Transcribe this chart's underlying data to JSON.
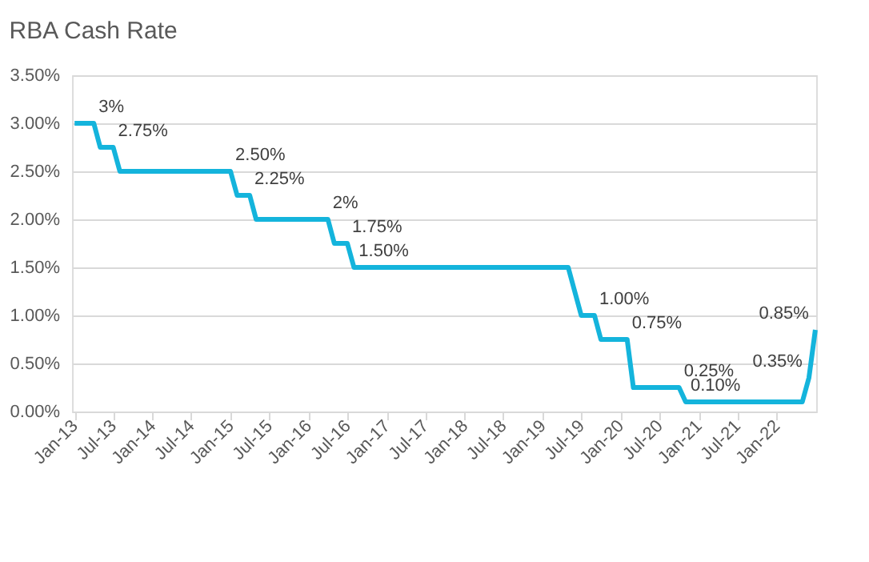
{
  "chart_data": {
    "type": "line",
    "title": "RBA Cash Rate",
    "x": [
      "2013-01",
      "2013-04",
      "2013-05",
      "2013-07",
      "2013-08",
      "2015-01",
      "2015-02",
      "2015-04",
      "2015-05",
      "2016-04",
      "2016-05",
      "2016-07",
      "2016-08",
      "2019-05",
      "2019-07",
      "2019-09",
      "2019-10",
      "2020-02",
      "2020-03",
      "2020-10",
      "2020-11",
      "2022-05",
      "2022-06",
      "2022-07"
    ],
    "series": [
      {
        "color": "#14b4dc",
        "values": [
          3.0,
          3.0,
          2.75,
          2.75,
          2.5,
          2.5,
          2.25,
          2.25,
          2.0,
          2.0,
          1.75,
          1.75,
          1.5,
          1.5,
          1.0,
          1.0,
          0.75,
          0.75,
          0.25,
          0.25,
          0.1,
          0.1,
          0.35,
          0.85
        ]
      }
    ],
    "xlim": [
      "2012-12-20",
      "2022-07-05"
    ],
    "xticks": [
      {
        "value": "2013-01",
        "label": "Jan-13"
      },
      {
        "value": "2013-07",
        "label": "Jul-13"
      },
      {
        "value": "2014-01",
        "label": "Jan-14"
      },
      {
        "value": "2014-07",
        "label": "Jul-14"
      },
      {
        "value": "2015-01",
        "label": "Jan-15"
      },
      {
        "value": "2015-07",
        "label": "Jul-15"
      },
      {
        "value": "2016-01",
        "label": "Jan-16"
      },
      {
        "value": "2016-07",
        "label": "Jul-16"
      },
      {
        "value": "2017-01",
        "label": "Jan-17"
      },
      {
        "value": "2017-07",
        "label": "Jul-17"
      },
      {
        "value": "2018-01",
        "label": "Jan-18"
      },
      {
        "value": "2018-07",
        "label": "Jul-18"
      },
      {
        "value": "2019-01",
        "label": "Jan-19"
      },
      {
        "value": "2019-07",
        "label": "Jul-19"
      },
      {
        "value": "2020-01",
        "label": "Jan-20"
      },
      {
        "value": "2020-07",
        "label": "Jul-20"
      },
      {
        "value": "2021-01",
        "label": "Jan-21"
      },
      {
        "value": "2021-07",
        "label": "Jul-21"
      },
      {
        "value": "2022-01",
        "label": "Jan-22"
      }
    ],
    "ylim": [
      0,
      3.5
    ],
    "yticks": [
      {
        "value": 0,
        "label": "0.00%"
      },
      {
        "value": 0.5,
        "label": "0.50%"
      },
      {
        "value": 1.0,
        "label": "1.00%"
      },
      {
        "value": 1.5,
        "label": "1.50%"
      },
      {
        "value": 2.0,
        "label": "2.00%"
      },
      {
        "value": 2.5,
        "label": "2.50%"
      },
      {
        "value": 3.0,
        "label": "3.00%"
      },
      {
        "value": 3.5,
        "label": "3.50%"
      }
    ],
    "grid": "y",
    "legend": false,
    "marker": "none",
    "line_style": "solid",
    "annotations": [
      {
        "text": "3%",
        "x": "2013-04",
        "y": 3.0
      },
      {
        "text": "2.75%",
        "x": "2013-07",
        "y": 2.75
      },
      {
        "text": "2.50%",
        "x": "2015-01",
        "y": 2.5
      },
      {
        "text": "2.25%",
        "x": "2015-04",
        "y": 2.25
      },
      {
        "text": "2%",
        "x": "2016-04",
        "y": 2.0
      },
      {
        "text": "1.75%",
        "x": "2016-07",
        "y": 1.75
      },
      {
        "text": "1.50%",
        "x": "2016-08",
        "y": 1.5
      },
      {
        "text": "1.00%",
        "x": "2019-09",
        "y": 1.0
      },
      {
        "text": "0.75%",
        "x": "2020-02",
        "y": 0.75
      },
      {
        "text": "0.25%",
        "x": "2020-10",
        "y": 0.25
      },
      {
        "text": "0.10%",
        "x": "2020-11",
        "y": 0.1
      },
      {
        "text": "0.35%",
        "x": "2022-06",
        "y": 0.35
      },
      {
        "text": "0.85%",
        "x": "2022-07",
        "y": 0.85
      }
    ]
  }
}
